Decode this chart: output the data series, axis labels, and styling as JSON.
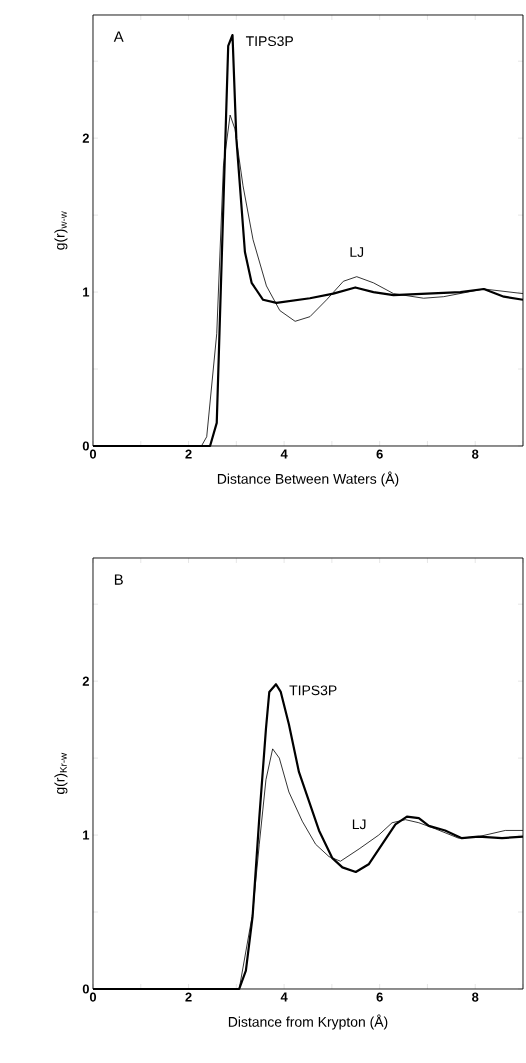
{
  "chart_data": [
    {
      "type": "line",
      "xlabel": "Distance Between Waters (Å)",
      "ylabel": "g(r)$_{w-w}$",
      "annotations": [
        "A"
      ],
      "xlim": [
        0,
        9
      ],
      "ylim": [
        0,
        2.8
      ],
      "xticks": [
        0,
        {
          "value": 1,
          "label": null
        },
        2,
        {
          "value": 3,
          "label": null
        },
        4,
        {
          "value": 5,
          "label": null
        },
        6,
        {
          "value": 7,
          "label": null
        },
        8,
        {
          "value": 9,
          "label": null
        }
      ],
      "yticks": [
        0,
        {
          "value": 0.5,
          "label": null
        },
        1,
        {
          "value": 1.5,
          "label": null
        },
        2,
        {
          "value": 2.5,
          "label": null
        }
      ],
      "line_style": "solid",
      "series": [
        {
          "name": "TIPS3P",
          "color": "#000000",
          "x": [
            0,
            2.45,
            2.59,
            2.83,
            2.92,
            3.0,
            3.18,
            3.32,
            3.56,
            3.84,
            4.54,
            5.03,
            5.49,
            5.87,
            6.29,
            6.99,
            7.69,
            8.18,
            8.6,
            9.0
          ],
          "values": [
            0,
            0,
            0.15,
            2.6,
            2.67,
            2.0,
            1.26,
            1.06,
            0.95,
            0.93,
            0.96,
            0.99,
            1.03,
            1.0,
            0.98,
            0.99,
            1.0,
            1.02,
            0.97,
            0.95
          ]
        },
        {
          "name": "LJ",
          "color": "#000000",
          "x": [
            0,
            2.27,
            2.38,
            2.59,
            2.73,
            2.87,
            2.97,
            3.14,
            3.35,
            3.63,
            3.91,
            4.23,
            4.54,
            4.89,
            5.24,
            5.52,
            5.87,
            6.29,
            6.92,
            7.34,
            8.18,
            9.0
          ],
          "values": [
            0,
            0,
            0.06,
            0.73,
            1.82,
            2.15,
            2.06,
            1.69,
            1.34,
            1.04,
            0.88,
            0.81,
            0.84,
            0.95,
            1.07,
            1.1,
            1.06,
            0.99,
            0.96,
            0.97,
            1.02,
            0.99
          ]
        }
      ]
    },
    {
      "type": "line",
      "xlabel": "Distance from Krypton (Å)",
      "ylabel": "g(r)$_{Kr-w}$",
      "annotations": [
        "B"
      ],
      "xlim": [
        0,
        9
      ],
      "ylim": [
        0,
        2.8
      ],
      "xticks": [
        0,
        {
          "value": 1,
          "label": null
        },
        2,
        {
          "value": 3,
          "label": null
        },
        4,
        {
          "value": 5,
          "label": null
        },
        6,
        {
          "value": 7,
          "label": null
        },
        8,
        {
          "value": 9,
          "label": null
        }
      ],
      "yticks": [
        0,
        {
          "value": 0.5,
          "label": null
        },
        1,
        {
          "value": 1.5,
          "label": null
        },
        2,
        {
          "value": 2.5,
          "label": null
        }
      ],
      "line_style": "solid",
      "series": [
        {
          "name": "TIPS3P",
          "color": "#000000",
          "x": [
            0,
            3.06,
            3.2,
            3.34,
            3.48,
            3.62,
            3.69,
            3.83,
            3.93,
            4.1,
            4.31,
            4.52,
            4.73,
            5.01,
            5.22,
            5.5,
            5.77,
            6.05,
            6.33,
            6.57,
            6.82,
            7.03,
            7.37,
            7.72,
            8.07,
            8.56,
            9.0
          ],
          "values": [
            0,
            0,
            0.12,
            0.47,
            1.11,
            1.69,
            1.93,
            1.98,
            1.93,
            1.72,
            1.41,
            1.22,
            1.03,
            0.85,
            0.79,
            0.76,
            0.81,
            0.94,
            1.07,
            1.12,
            1.11,
            1.06,
            1.03,
            0.98,
            0.99,
            0.98,
            0.99
          ]
        },
        {
          "name": "LJ",
          "color": "#000000",
          "x": [
            0,
            3.06,
            3.34,
            3.48,
            3.62,
            3.76,
            3.9,
            4.1,
            4.38,
            4.66,
            4.94,
            5.18,
            5.57,
            5.98,
            6.26,
            6.54,
            6.82,
            7.17,
            7.65,
            8.07,
            8.63,
            9.0
          ],
          "values": [
            0,
            0,
            0.49,
            0.94,
            1.36,
            1.56,
            1.5,
            1.28,
            1.09,
            0.94,
            0.86,
            0.83,
            0.91,
            1.0,
            1.08,
            1.1,
            1.08,
            1.04,
            0.98,
            0.99,
            1.03,
            1.03
          ]
        }
      ]
    }
  ]
}
